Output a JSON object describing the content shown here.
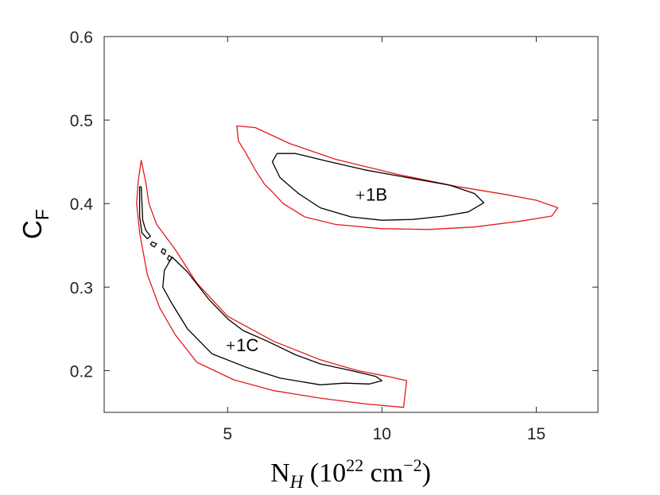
{
  "chart_data": {
    "type": "contour",
    "title": "",
    "xlabel": {
      "base": "N",
      "base_sub": "H",
      "open": " (10",
      "exp1": "22",
      "mid": " cm",
      "exp2": "−2",
      "close": ")"
    },
    "ylabel": {
      "base": "C",
      "sub": "F"
    },
    "xlim": [
      1,
      17
    ],
    "ylim": [
      0.15,
      0.6
    ],
    "xticks": [
      5,
      10,
      15
    ],
    "xtick_labels": [
      "5",
      "10",
      "15"
    ],
    "yticks": [
      0.2,
      0.3,
      0.4,
      0.5,
      0.6
    ],
    "ytick_labels": [
      "0.2",
      "0.3",
      "0.4",
      "0.5",
      "0.6"
    ],
    "grid": false,
    "colors": {
      "outer": "#e41a1c",
      "inner": "#000000",
      "axis": "#262626"
    },
    "best_fits": [
      {
        "label": "1B",
        "x": 9.3,
        "y": 0.41
      },
      {
        "label": "1C",
        "x": 5.1,
        "y": 0.23
      }
    ],
    "contours": [
      {
        "level": "outer",
        "region": "1B",
        "points": [
          [
            5.3,
            0.493
          ],
          [
            5.9,
            0.491
          ],
          [
            7.0,
            0.472
          ],
          [
            8.5,
            0.453
          ],
          [
            10.5,
            0.435
          ],
          [
            12.5,
            0.42
          ],
          [
            14.0,
            0.411
          ],
          [
            15.0,
            0.404
          ],
          [
            15.7,
            0.395
          ],
          [
            15.5,
            0.385
          ],
          [
            14.5,
            0.379
          ],
          [
            13.0,
            0.372
          ],
          [
            11.5,
            0.369
          ],
          [
            10.0,
            0.37
          ],
          [
            8.5,
            0.375
          ],
          [
            7.5,
            0.384
          ],
          [
            6.8,
            0.4
          ],
          [
            6.5,
            0.412
          ],
          [
            6.2,
            0.423
          ],
          [
            5.9,
            0.44
          ],
          [
            5.6,
            0.46
          ],
          [
            5.35,
            0.475
          ],
          [
            5.3,
            0.493
          ]
        ]
      },
      {
        "level": "inner",
        "region": "1B",
        "points": [
          [
            6.6,
            0.46
          ],
          [
            7.2,
            0.46
          ],
          [
            8.2,
            0.451
          ],
          [
            9.5,
            0.44
          ],
          [
            11.0,
            0.43
          ],
          [
            12.2,
            0.422
          ],
          [
            13.0,
            0.412
          ],
          [
            13.3,
            0.401
          ],
          [
            12.8,
            0.39
          ],
          [
            12.0,
            0.385
          ],
          [
            11.0,
            0.381
          ],
          [
            10.0,
            0.38
          ],
          [
            9.0,
            0.384
          ],
          [
            8.0,
            0.395
          ],
          [
            7.3,
            0.412
          ],
          [
            6.7,
            0.431
          ],
          [
            6.45,
            0.45
          ],
          [
            6.6,
            0.46
          ]
        ]
      },
      {
        "level": "outer",
        "region": "1C",
        "points": [
          [
            2.1,
            0.426
          ],
          [
            2.2,
            0.452
          ],
          [
            2.35,
            0.425
          ],
          [
            2.45,
            0.4
          ],
          [
            2.7,
            0.375
          ],
          [
            3.3,
            0.345
          ],
          [
            4.0,
            0.305
          ],
          [
            5.0,
            0.265
          ],
          [
            6.5,
            0.235
          ],
          [
            8.0,
            0.213
          ],
          [
            9.2,
            0.2
          ],
          [
            10.2,
            0.193
          ],
          [
            10.8,
            0.188
          ],
          [
            10.7,
            0.156
          ],
          [
            9.5,
            0.16
          ],
          [
            8.0,
            0.167
          ],
          [
            6.5,
            0.176
          ],
          [
            5.2,
            0.189
          ],
          [
            4.0,
            0.21
          ],
          [
            3.3,
            0.243
          ],
          [
            2.8,
            0.275
          ],
          [
            2.4,
            0.315
          ],
          [
            2.15,
            0.365
          ],
          [
            2.05,
            0.4
          ],
          [
            2.1,
            0.426
          ]
        ]
      },
      {
        "level": "inner",
        "region": "1C",
        "points": [
          [
            3.2,
            0.336
          ],
          [
            3.7,
            0.318
          ],
          [
            4.4,
            0.285
          ],
          [
            5.0,
            0.262
          ],
          [
            5.5,
            0.248
          ],
          [
            6.3,
            0.235
          ],
          [
            7.2,
            0.219
          ],
          [
            8.0,
            0.208
          ],
          [
            9.0,
            0.2
          ],
          [
            9.8,
            0.193
          ],
          [
            10.0,
            0.188
          ],
          [
            9.6,
            0.184
          ],
          [
            8.8,
            0.185
          ],
          [
            8.0,
            0.183
          ],
          [
            6.7,
            0.191
          ],
          [
            5.6,
            0.204
          ],
          [
            4.5,
            0.22
          ],
          [
            3.7,
            0.25
          ],
          [
            3.2,
            0.28
          ],
          [
            2.9,
            0.3
          ],
          [
            2.95,
            0.32
          ],
          [
            3.2,
            0.336
          ]
        ]
      },
      {
        "level": "inner",
        "region": "1C-tip",
        "points": [
          [
            2.15,
            0.42
          ],
          [
            2.2,
            0.42
          ],
          [
            2.25,
            0.38
          ],
          [
            2.35,
            0.368
          ],
          [
            2.5,
            0.361
          ],
          [
            2.4,
            0.358
          ],
          [
            2.22,
            0.365
          ],
          [
            2.15,
            0.385
          ],
          [
            2.15,
            0.42
          ]
        ]
      },
      {
        "level": "inner",
        "region": "1C-island-a",
        "points": [
          [
            2.55,
            0.354
          ],
          [
            2.7,
            0.352
          ],
          [
            2.62,
            0.348
          ],
          [
            2.5,
            0.351
          ],
          [
            2.55,
            0.354
          ]
        ]
      },
      {
        "level": "inner",
        "region": "1C-island-b",
        "points": [
          [
            2.9,
            0.346
          ],
          [
            3.0,
            0.344
          ],
          [
            2.95,
            0.339
          ],
          [
            2.85,
            0.342
          ],
          [
            2.9,
            0.346
          ]
        ]
      },
      {
        "level": "inner",
        "region": "1C-island-c",
        "points": [
          [
            3.1,
            0.338
          ],
          [
            3.2,
            0.335
          ],
          [
            3.12,
            0.331
          ],
          [
            3.05,
            0.334
          ],
          [
            3.1,
            0.338
          ]
        ]
      }
    ]
  }
}
